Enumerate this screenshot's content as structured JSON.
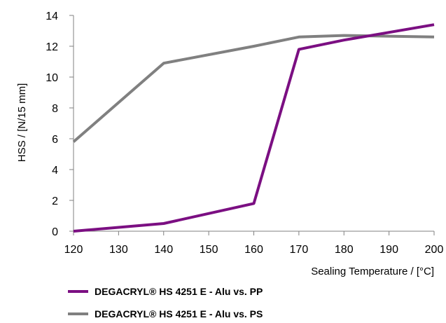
{
  "chart_data": {
    "type": "line",
    "title": "",
    "xlabel": "Sealing Temperature / [°C]",
    "ylabel": "HSS / [N/15 mm]",
    "xlim": [
      120,
      200
    ],
    "ylim": [
      0,
      14
    ],
    "xticks": [
      120,
      130,
      140,
      150,
      160,
      170,
      180,
      190,
      200
    ],
    "yticks": [
      0,
      2,
      4,
      6,
      8,
      10,
      12,
      14
    ],
    "grid": false,
    "legend_position": "bottom",
    "series": [
      {
        "name": "DEGACRYL® HS 4251 E - Alu vs. PP",
        "color": "#7B0F82",
        "x": [
          120,
          140,
          160,
          170,
          180,
          200
        ],
        "y": [
          0,
          0.5,
          1.8,
          11.8,
          12.4,
          13.4
        ]
      },
      {
        "name": "DEGACRYL® HS 4251 E - Alu vs. PS",
        "color": "#808080",
        "x": [
          120,
          140,
          160,
          170,
          180,
          200
        ],
        "y": [
          5.8,
          10.9,
          12.0,
          12.6,
          12.7,
          12.6
        ]
      }
    ]
  }
}
